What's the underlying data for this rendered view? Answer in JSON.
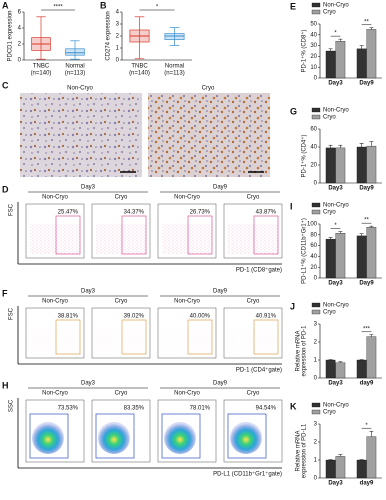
{
  "chart_data": [
    {
      "type": "box",
      "panel": "A",
      "ylabel": "PDCD1 expression",
      "categories": [
        "TNBC",
        "Normal"
      ],
      "category_sublabels": [
        "(n=140)",
        "(n=113)"
      ],
      "colors": [
        "#d9392b",
        "#3a8fd1"
      ],
      "boxes": [
        {
          "whisker_low": 0.1,
          "q1": 1.2,
          "median": 2.0,
          "q3": 2.8,
          "whisker_high": 5.4
        },
        {
          "whisker_low": 0.1,
          "q1": 0.6,
          "median": 0.9,
          "q3": 1.4,
          "whisker_high": 2.4
        }
      ],
      "ylim": [
        0,
        6
      ],
      "yticks": [
        0,
        2,
        4,
        6
      ],
      "significance": "****"
    },
    {
      "type": "box",
      "panel": "B",
      "ylabel": "CD274 expression",
      "categories": [
        "TNBC",
        "Normal"
      ],
      "category_sublabels": [
        "(n=140)",
        "(n=113)"
      ],
      "colors": [
        "#d9392b",
        "#3a8fd1"
      ],
      "boxes": [
        {
          "whisker_low": 0.1,
          "q1": 1.5,
          "median": 2.0,
          "q3": 2.5,
          "whisker_high": 3.6
        },
        {
          "whisker_low": 1.2,
          "q1": 1.7,
          "median": 2.0,
          "q3": 2.2,
          "whisker_high": 2.7
        }
      ],
      "ylim": [
        0,
        4
      ],
      "yticks": [
        0,
        1,
        2,
        3,
        4
      ],
      "significance": "*"
    },
    {
      "type": "bar",
      "panel": "E",
      "ylabel": [
        "PD-1⁺% (CD8⁺)"
      ],
      "categories": [
        "Day3",
        "Day9"
      ],
      "series": [
        {
          "name": "Non-Cryo",
          "color": "#333333",
          "values": [
            25,
            27
          ],
          "errors": [
            2,
            3
          ]
        },
        {
          "name": "Cryo",
          "color": "#a0a0a0",
          "values": [
            34,
            45
          ],
          "errors": [
            2,
            1.5
          ]
        }
      ],
      "ylim": [
        0,
        50
      ],
      "yticks": [
        0,
        10,
        20,
        30,
        40,
        50
      ],
      "significance": [
        "*",
        "**"
      ]
    },
    {
      "type": "bar",
      "panel": "G",
      "ylabel": [
        "PD-1⁺% (CD4⁺)"
      ],
      "categories": [
        "Day3",
        "Day9"
      ],
      "series": [
        {
          "name": "Non-Cryo",
          "color": "#333333",
          "values": [
            39,
            40
          ],
          "errors": [
            3,
            4
          ]
        },
        {
          "name": "Cryo",
          "color": "#a0a0a0",
          "values": [
            39,
            41
          ],
          "errors": [
            3,
            5
          ]
        }
      ],
      "ylim": [
        0,
        60
      ],
      "yticks": [
        0,
        20,
        40,
        60
      ],
      "significance": []
    },
    {
      "type": "bar",
      "panel": "I",
      "ylabel": [
        "PD-L1⁺% (CD11b⁺Gr1⁺)"
      ],
      "categories": [
        "Day3",
        "Day9"
      ],
      "series": [
        {
          "name": "Non-Cryo",
          "color": "#333333",
          "values": [
            72,
            78
          ],
          "errors": [
            3,
            4
          ]
        },
        {
          "name": "Cryo",
          "color": "#a0a0a0",
          "values": [
            83,
            94
          ],
          "errors": [
            3,
            2
          ]
        }
      ],
      "ylim": [
        0,
        100
      ],
      "yticks": [
        0,
        20,
        40,
        60,
        80,
        100
      ],
      "significance": [
        "*",
        "**"
      ]
    },
    {
      "type": "bar",
      "panel": "J",
      "ylabel": [
        "Relative mRNA",
        "expression of PD-1"
      ],
      "categories": [
        "Day3",
        "day9"
      ],
      "series": [
        {
          "name": "Non-Cryo",
          "color": "#333333",
          "values": [
            1,
            1
          ],
          "errors": [
            0.02,
            0.02
          ]
        },
        {
          "name": "Cryo",
          "color": "#a0a0a0",
          "values": [
            0.85,
            2.3
          ],
          "errors": [
            0.05,
            0.1
          ]
        }
      ],
      "ylim": [
        0,
        3
      ],
      "yticks": [
        0,
        1,
        2,
        3
      ],
      "significance": [
        null,
        "***"
      ]
    },
    {
      "type": "bar",
      "panel": "K",
      "ylabel": [
        "Relative mRNA",
        "expression of PD-L1"
      ],
      "categories": [
        "Day3",
        "day9"
      ],
      "series": [
        {
          "name": "Non-Cryo",
          "color": "#333333",
          "values": [
            1,
            1
          ],
          "errors": [
            0.02,
            0.02
          ]
        },
        {
          "name": "Cryo",
          "color": "#a0a0a0",
          "values": [
            1.2,
            2.3
          ],
          "errors": [
            0.1,
            0.3
          ]
        }
      ],
      "ylim": [
        0,
        3
      ],
      "yticks": [
        0,
        1,
        2,
        3
      ],
      "significance": [
        null,
        "*"
      ]
    }
  ],
  "ihc": {
    "panel": "C",
    "groups": [
      "Non-Cryo",
      "Cryo"
    ]
  },
  "flow_panels": [
    {
      "panel": "D",
      "timepoints": [
        "Day3",
        "Day9"
      ],
      "groups": [
        "Non-Cryo",
        "Cryo",
        "Non-Cryo",
        "Cryo"
      ],
      "percentages": [
        "25.47%",
        "34.37%",
        "26.73%",
        "43.87%"
      ],
      "y_axis": "FSC",
      "x_axis": "PD-1 (CD8⁺gate)",
      "gate_color": "#d9579a"
    },
    {
      "panel": "F",
      "timepoints": [
        "Day3",
        "Day9"
      ],
      "groups": [
        "Non-Cryo",
        "Cryo",
        "Non-Cryo",
        "Cryo"
      ],
      "percentages": [
        "38.81%",
        "39.02%",
        "40.00%",
        "40.91%"
      ],
      "y_axis": "FSC",
      "x_axis": "PD-1 (CD4⁺gate)",
      "gate_color": "#e0a050"
    },
    {
      "panel": "H",
      "timepoints": [
        "Day3",
        "Day9"
      ],
      "groups": [
        "Non-Cryo",
        "Cryo",
        "Non-Cryo",
        "Cryo"
      ],
      "percentages": [
        "73.53%",
        "83.35%",
        "78.01%",
        "94.54%"
      ],
      "y_axis": "SSC",
      "x_axis": "PD-L1 (CD11b⁺Gr1⁺gate)",
      "gate_color": "#3050c0"
    }
  ]
}
